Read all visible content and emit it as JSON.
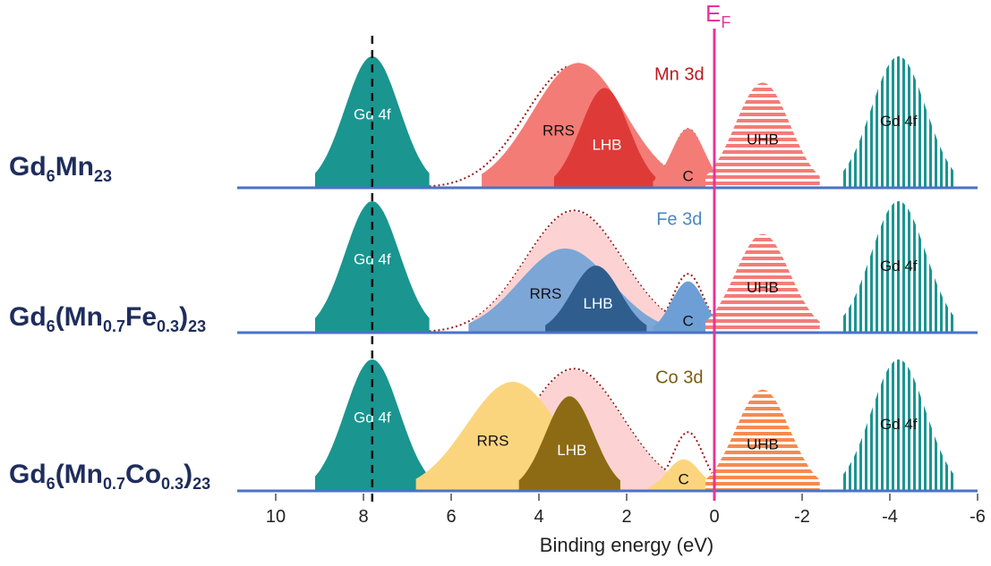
{
  "chart_data": {
    "type": "area",
    "xlabel": "Binding energy (eV)",
    "xlim": [
      10,
      -6
    ],
    "x_ticks": [
      "10",
      "8",
      "6",
      "4",
      "2",
      "0",
      "-2",
      "-4",
      "-6"
    ],
    "x_tick_values": [
      10,
      8,
      6,
      4,
      2,
      0,
      -2,
      -4,
      -6
    ],
    "fermi_level": {
      "label_main": "E",
      "label_sub": "F",
      "x": 0,
      "color": "#e8339a"
    },
    "reference_line_x": 7.8,
    "panels": [
      {
        "compound": "Gd6Mn23",
        "label_parts": [
          {
            "text": "Gd",
            "sub": "6"
          },
          {
            "text": "Mn",
            "sub": "23"
          }
        ],
        "element_label": "Mn 3d",
        "element_color": "#c0161c",
        "peaks": [
          {
            "name": "Gd 4f",
            "label": "Gd 4f",
            "center": 7.8,
            "height": 1.0,
            "fill": "#1a9590",
            "pattern": "solid"
          },
          {
            "name": "RRS",
            "label": "RRS",
            "center": 3.1,
            "height": 0.95,
            "fill": "#f47c77",
            "pattern": "solid"
          },
          {
            "name": "LHB",
            "label": "LHB",
            "center": 2.5,
            "height": 0.76,
            "fill": "#de3b38",
            "pattern": "solid"
          },
          {
            "name": "C",
            "label": "C",
            "center": 0.6,
            "height": 0.45,
            "fill": "#f47c77",
            "pattern": "solid"
          },
          {
            "name": "UHB",
            "label": "UHB",
            "center": -1.1,
            "height": 0.8,
            "fill": "#f47c77",
            "pattern": "horizontal"
          },
          {
            "name": "Gd 4f",
            "label": "Gd 4f",
            "center": -4.2,
            "height": 1.0,
            "fill": "#1a9590",
            "pattern": "vertical"
          }
        ]
      },
      {
        "compound": "Gd6(Mn0.7Fe0.3)23",
        "label_parts": [
          {
            "text": "Gd",
            "sub": "6"
          },
          {
            "text": "(Mn",
            "sub": "0.7"
          },
          {
            "text": "Fe",
            "sub": "0.3"
          },
          {
            "text": ")",
            "sub": "23"
          }
        ],
        "element_label": "Fe 3d",
        "element_color": "#4a86c8",
        "peaks": [
          {
            "name": "Gd 4f",
            "label": "Gd 4f",
            "center": 7.8,
            "height": 1.0,
            "fill": "#1a9590",
            "pattern": "solid"
          },
          {
            "name": "Mn envelope",
            "label": "",
            "center": 3.2,
            "height": 0.92,
            "fill": "#fcd3d2",
            "pattern": "solid"
          },
          {
            "name": "RRS",
            "label": "RRS",
            "center": 3.4,
            "height": 0.64,
            "fill": "#7ba6d6",
            "pattern": "solid"
          },
          {
            "name": "LHB",
            "label": "LHB",
            "center": 2.7,
            "height": 0.51,
            "fill": "#2f5e8e",
            "pattern": "solid"
          },
          {
            "name": "C",
            "label": "C",
            "center": 0.6,
            "height": 0.39,
            "fill": "#6d9fd6",
            "pattern": "solid"
          },
          {
            "name": "UHB",
            "label": "UHB",
            "center": -1.1,
            "height": 0.75,
            "fill": "#f47c77",
            "pattern": "horizontal"
          },
          {
            "name": "Gd 4f",
            "label": "Gd 4f",
            "center": -4.2,
            "height": 1.0,
            "fill": "#1a9590",
            "pattern": "vertical"
          }
        ]
      },
      {
        "compound": "Gd6(Mn0.7Co0.3)23",
        "label_parts": [
          {
            "text": "Gd",
            "sub": "6"
          },
          {
            "text": "(Mn",
            "sub": "0.7"
          },
          {
            "text": "Co",
            "sub": "0.3"
          },
          {
            "text": ")",
            "sub": "23"
          }
        ],
        "element_label": "Co 3d",
        "element_color": "#7a5c12",
        "peaks": [
          {
            "name": "Gd 4f",
            "label": "Gd 4f",
            "center": 7.8,
            "height": 1.0,
            "fill": "#1a9590",
            "pattern": "solid"
          },
          {
            "name": "Mn envelope",
            "label": "",
            "center": 3.2,
            "height": 0.92,
            "fill": "#fcd3d2",
            "pattern": "solid"
          },
          {
            "name": "RRS",
            "label": "RRS",
            "center": 4.6,
            "height": 0.83,
            "fill": "#fbd57e",
            "pattern": "solid"
          },
          {
            "name": "LHB",
            "label": "LHB",
            "center": 3.3,
            "height": 0.72,
            "fill": "#8d6b14",
            "pattern": "solid"
          },
          {
            "name": "C",
            "label": "C",
            "center": 0.7,
            "height": 0.24,
            "fill": "#fbd57e",
            "pattern": "solid"
          },
          {
            "name": "UHB",
            "label": "UHB",
            "center": -1.1,
            "height": 0.77,
            "fill": "#f58a50",
            "pattern": "horizontal"
          },
          {
            "name": "Gd 4f",
            "label": "Gd 4f",
            "center": -4.2,
            "height": 1.0,
            "fill": "#1a9590",
            "pattern": "vertical"
          }
        ]
      }
    ]
  }
}
